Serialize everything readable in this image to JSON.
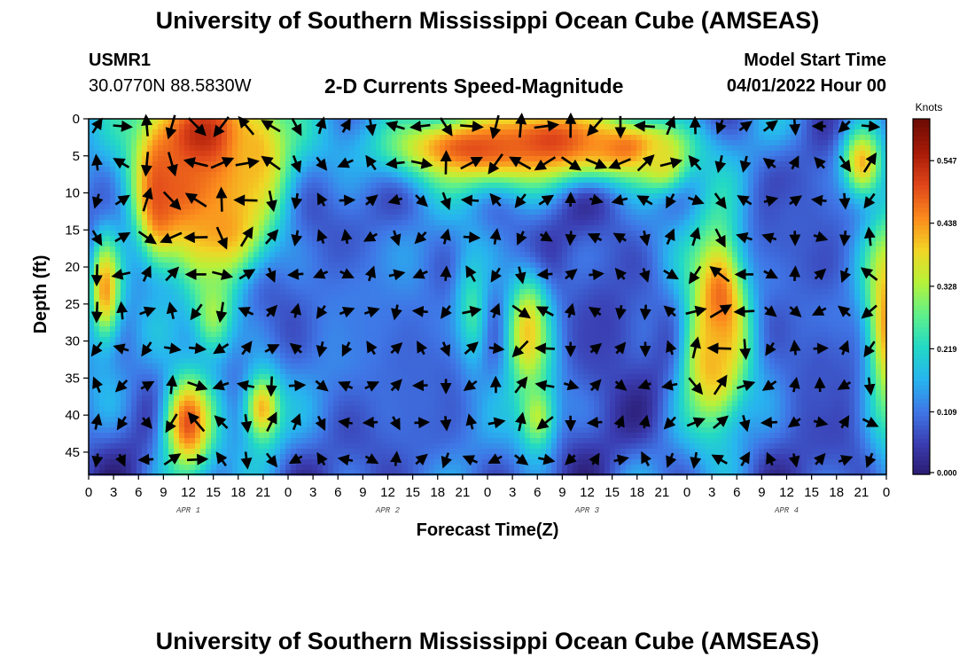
{
  "header": {
    "title": "University of Southern Mississippi Ocean Cube (AMSEAS)",
    "station_id": "USMR1",
    "coordinates": "30.0770N  88.5830W",
    "chart_title": "2-D Currents Speed-Magnitude",
    "start_label": "Model Start Time",
    "start_value": "04/01/2022 Hour 00"
  },
  "footer": {
    "title": "University of Southern Mississippi Ocean Cube (AMSEAS)"
  },
  "chart_data": {
    "type": "heatmap",
    "title": "2-D Currents Speed-Magnitude",
    "xlabel": "Forecast Time(Z)",
    "ylabel": "Depth (ft)",
    "x_tick_labels": [
      "0",
      "3",
      "6",
      "9",
      "12",
      "15",
      "18",
      "21",
      "0",
      "3",
      "6",
      "9",
      "12",
      "15",
      "18",
      "21",
      "0",
      "3",
      "6",
      "9",
      "12",
      "15",
      "18",
      "21",
      "0",
      "3",
      "6",
      "9",
      "12",
      "15",
      "18",
      "21",
      "0"
    ],
    "x_hours_range": [
      0,
      96
    ],
    "day_labels": [
      {
        "label": "APR 1",
        "hour": 12
      },
      {
        "label": "APR 2",
        "hour": 36
      },
      {
        "label": "APR 3",
        "hour": 60
      },
      {
        "label": "APR 4",
        "hour": 84
      }
    ],
    "y_ticks": [
      0,
      5,
      10,
      15,
      20,
      25,
      30,
      35,
      40,
      45
    ],
    "y_tick_labels": [
      "0",
      "5",
      "10",
      "15",
      "20",
      "25",
      "30",
      "35",
      "40",
      "45"
    ],
    "ylim": [
      0,
      48
    ],
    "y_inverted": true,
    "colorbar": {
      "title": "Knots",
      "ticks": [
        0.0,
        0.109,
        0.219,
        0.328,
        0.438,
        0.547
      ],
      "tick_labels": [
        "0.000",
        "0.109",
        "0.219",
        "0.328",
        "0.438",
        "0.547"
      ],
      "range": [
        0,
        0.62
      ],
      "colors": [
        "#2a1a6e",
        "#3a3cb0",
        "#3f76e6",
        "#27b4ef",
        "#22d8c6",
        "#5ef08a",
        "#b6f23a",
        "#f2d525",
        "#fb8a1d",
        "#e0461a",
        "#a81b08",
        "#6e0c05"
      ]
    },
    "hotspots_knots": [
      {
        "hour": 14,
        "depth": 3,
        "peak": 0.58,
        "sx": 5.5,
        "sy": 6
      },
      {
        "hour": 12,
        "depth": 10,
        "peak": 0.5,
        "sx": 4.5,
        "sy": 5
      },
      {
        "hour": 16,
        "depth": 15,
        "peak": 0.45,
        "sx": 4,
        "sy": 5
      },
      {
        "hour": 8.5,
        "depth": 10,
        "peak": 0.5,
        "sx": 1.6,
        "sy": 6
      },
      {
        "hour": 20,
        "depth": 5,
        "peak": 0.42,
        "sx": 2.5,
        "sy": 5
      },
      {
        "hour": 46,
        "depth": 4,
        "peak": 0.5,
        "sx": 8,
        "sy": 3.5
      },
      {
        "hour": 56,
        "depth": 3,
        "peak": 0.52,
        "sx": 5,
        "sy": 3
      },
      {
        "hour": 65,
        "depth": 4,
        "peak": 0.48,
        "sx": 5,
        "sy": 3
      },
      {
        "hour": 69,
        "depth": 6,
        "peak": 0.38,
        "sx": 2,
        "sy": 2.5
      },
      {
        "hour": 76,
        "depth": 25,
        "peak": 0.52,
        "sx": 2.5,
        "sy": 8
      },
      {
        "hour": 75,
        "depth": 33,
        "peak": 0.42,
        "sx": 2.5,
        "sy": 6
      },
      {
        "hour": 93,
        "depth": 6,
        "peak": 0.44,
        "sx": 1.8,
        "sy": 3.5
      },
      {
        "hour": 96,
        "depth": 28,
        "peak": 0.48,
        "sx": 2,
        "sy": 10
      },
      {
        "hour": 12,
        "depth": 41,
        "peak": 0.5,
        "sx": 2.2,
        "sy": 5
      },
      {
        "hour": 21,
        "depth": 39,
        "peak": 0.44,
        "sx": 1.6,
        "sy": 3.5
      },
      {
        "hour": 2,
        "depth": 23,
        "peak": 0.44,
        "sx": 1.3,
        "sy": 5
      },
      {
        "hour": 53,
        "depth": 29,
        "peak": 0.44,
        "sx": 2,
        "sy": 6
      },
      {
        "hour": 54,
        "depth": 40,
        "peak": 0.36,
        "sx": 1.6,
        "sy": 3.5
      },
      {
        "hour": 46,
        "depth": 27,
        "peak": 0.3,
        "sx": 1.5,
        "sy": 6
      },
      {
        "hour": 15,
        "depth": 26,
        "peak": 0.33,
        "sx": 2,
        "sy": 5
      },
      {
        "hour": 33,
        "depth": 27,
        "peak": 0.12,
        "sx": 6,
        "sy": 10
      },
      {
        "hour": 40,
        "depth": 38,
        "peak": 0.1,
        "sx": 5,
        "sy": 8
      },
      {
        "hour": 62,
        "depth": 28,
        "peak": 0.06,
        "sx": 4,
        "sy": 8
      },
      {
        "hour": 88,
        "depth": 35,
        "peak": 0.08,
        "sx": 4,
        "sy": 10
      },
      {
        "hour": 85,
        "depth": 14,
        "peak": 0.09,
        "sx": 4,
        "sy": 6
      }
    ]
  }
}
